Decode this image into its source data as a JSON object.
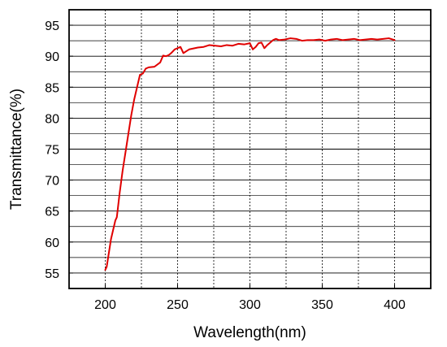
{
  "chart_data": {
    "type": "line",
    "title": "",
    "xlabel": "Wavelength(nm)",
    "ylabel": "Transmittance(%)",
    "xlim": [
      175,
      425
    ],
    "ylim": [
      52.5,
      97.5
    ],
    "x_ticks": [
      200,
      250,
      300,
      350,
      400
    ],
    "x_tick_labels": [
      "200",
      "250",
      "300",
      "350",
      "400"
    ],
    "y_ticks": [
      55,
      60,
      65,
      70,
      75,
      80,
      85,
      90,
      95
    ],
    "y_tick_labels": [
      "55",
      "60",
      "65",
      "70",
      "75",
      "80",
      "85",
      "90",
      "95"
    ],
    "grid": {
      "major_x": true,
      "minor_x": true,
      "major_y": true,
      "minor_y": true,
      "x_style": "dotted",
      "y_style": "solid"
    },
    "series": [
      {
        "color": "#e00000",
        "x": [
          200,
          201,
          202,
          203,
          204,
          205,
          206,
          207,
          208,
          209,
          210,
          212,
          214,
          216,
          218,
          220,
          222,
          224,
          226,
          228,
          230,
          234,
          238,
          240,
          242,
          244,
          246,
          248,
          250,
          252,
          254,
          256,
          258,
          260,
          264,
          268,
          272,
          276,
          280,
          284,
          288,
          292,
          296,
          300,
          302,
          304,
          306,
          308,
          310,
          312,
          316,
          318,
          320,
          324,
          328,
          332,
          336,
          340,
          344,
          348,
          352,
          356,
          360,
          364,
          368,
          372,
          376,
          380,
          384,
          388,
          392,
          396,
          400
        ],
        "y": [
          55.5,
          56,
          57.5,
          59,
          60.5,
          61.5,
          62.5,
          63.5,
          64,
          66,
          68,
          71.5,
          74.5,
          77.5,
          80.5,
          83,
          85,
          87,
          87.2,
          88,
          88.2,
          88.3,
          89,
          90.1,
          90,
          90.2,
          90.6,
          91.1,
          91.3,
          91.5,
          90.5,
          90.8,
          91.1,
          91.2,
          91.4,
          91.5,
          91.8,
          91.7,
          91.6,
          91.8,
          91.7,
          92,
          91.9,
          92.1,
          91.1,
          91.5,
          92.1,
          92.2,
          91.3,
          91.8,
          92.6,
          92.8,
          92.6,
          92.7,
          92.9,
          92.8,
          92.5,
          92.6,
          92.6,
          92.7,
          92.5,
          92.7,
          92.8,
          92.6,
          92.7,
          92.8,
          92.6,
          92.7,
          92.8,
          92.7,
          92.8,
          92.9,
          92.6
        ]
      }
    ]
  }
}
